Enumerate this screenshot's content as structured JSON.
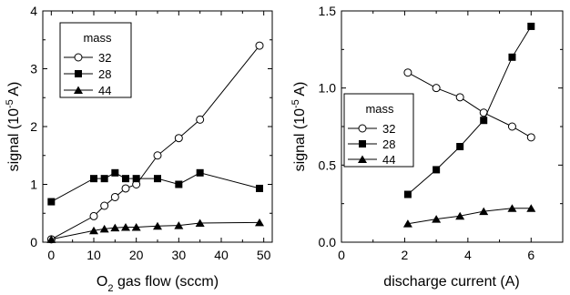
{
  "chart_data": [
    {
      "type": "line",
      "xlabel_prefix": "O",
      "xlabel_sub": "2",
      "xlabel_suffix": " gas flow (sccm)",
      "ylabel_prefix": "signal (10",
      "ylabel_sup": "-5",
      "ylabel_suffix": " A)",
      "xlim": [
        -2,
        52
      ],
      "ylim": [
        0,
        4
      ],
      "xticks": [
        0,
        10,
        20,
        30,
        40,
        50
      ],
      "xtick_labels": [
        "0",
        "10",
        "20",
        "30",
        "40",
        "50"
      ],
      "yticks": [
        0,
        1,
        2,
        3,
        4
      ],
      "ytick_labels": [
        "0",
        "1",
        "2",
        "3",
        "4"
      ],
      "legend_title": "mass",
      "legend_position": "top-left",
      "series": [
        {
          "name": "32",
          "marker": "open-circle",
          "x": [
            0,
            10,
            12.5,
            15,
            17.5,
            20,
            25,
            30,
            35,
            49
          ],
          "y": [
            0.05,
            0.45,
            0.63,
            0.78,
            0.93,
            1.0,
            1.5,
            1.8,
            2.12,
            3.4
          ]
        },
        {
          "name": "28",
          "marker": "filled-square",
          "x": [
            0,
            10,
            12.5,
            15,
            17.5,
            20,
            25,
            30,
            35,
            49
          ],
          "y": [
            0.7,
            1.1,
            1.1,
            1.2,
            1.1,
            1.1,
            1.1,
            1.0,
            1.2,
            0.93
          ]
        },
        {
          "name": "44",
          "marker": "filled-triangle",
          "x": [
            0,
            10,
            12.5,
            15,
            17.5,
            20,
            25,
            30,
            35,
            49
          ],
          "y": [
            0.05,
            0.2,
            0.23,
            0.25,
            0.26,
            0.26,
            0.28,
            0.29,
            0.33,
            0.34
          ]
        }
      ]
    },
    {
      "type": "line",
      "xlabel": "discharge current (A)",
      "ylabel_prefix": "signal (10",
      "ylabel_sup": "-5",
      "ylabel_suffix": " A)",
      "xlim": [
        0,
        7
      ],
      "ylim": [
        0,
        1.5
      ],
      "xticks": [
        0,
        2,
        4,
        6
      ],
      "xtick_labels": [
        "0",
        "2",
        "4",
        "6"
      ],
      "yticks": [
        0,
        0.5,
        1.0,
        1.5
      ],
      "ytick_labels": [
        "0.0",
        "0.5",
        "1.0",
        "1.5"
      ],
      "legend_title": "mass",
      "legend_position": "center-left",
      "series": [
        {
          "name": "32",
          "marker": "open-circle",
          "x": [
            2.1,
            3.0,
            3.75,
            4.5,
            5.4,
            6.0
          ],
          "y": [
            1.1,
            1.0,
            0.94,
            0.84,
            0.75,
            0.68
          ]
        },
        {
          "name": "28",
          "marker": "filled-square",
          "x": [
            2.1,
            3.0,
            3.75,
            4.5,
            5.4,
            6.0
          ],
          "y": [
            0.31,
            0.47,
            0.62,
            0.79,
            1.2,
            1.4
          ]
        },
        {
          "name": "44",
          "marker": "filled-triangle",
          "x": [
            2.1,
            3.0,
            3.75,
            4.5,
            5.4,
            6.0
          ],
          "y": [
            0.12,
            0.15,
            0.17,
            0.2,
            0.22,
            0.22
          ]
        }
      ]
    }
  ]
}
